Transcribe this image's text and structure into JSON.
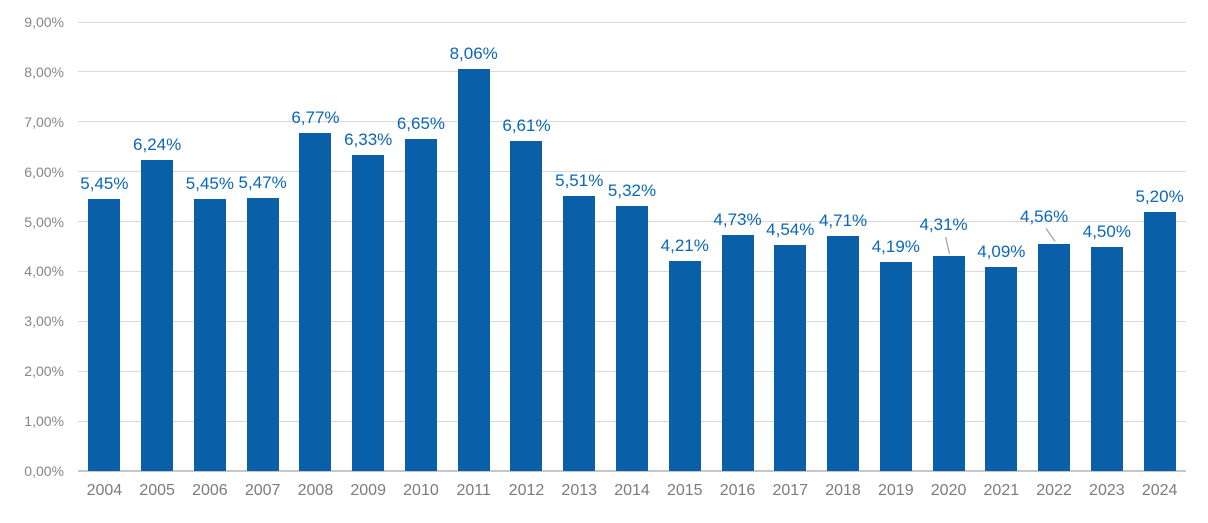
{
  "chart_data": {
    "type": "bar",
    "title": "",
    "xlabel": "",
    "ylabel": "",
    "categories": [
      "2004",
      "2005",
      "2006",
      "2007",
      "2008",
      "2009",
      "2010",
      "2011",
      "2012",
      "2013",
      "2014",
      "2015",
      "2016",
      "2017",
      "2018",
      "2019",
      "2020",
      "2021",
      "2022",
      "2023",
      "2024"
    ],
    "values": [
      5.45,
      6.24,
      5.45,
      5.47,
      6.77,
      6.33,
      6.65,
      8.06,
      6.61,
      5.51,
      5.32,
      4.21,
      4.73,
      4.54,
      4.71,
      4.19,
      4.31,
      4.09,
      4.56,
      4.5,
      5.2
    ],
    "value_labels": [
      "5,45%",
      "6,24%",
      "5,45%",
      "5,47%",
      "6,77%",
      "6,33%",
      "6,65%",
      "8,06%",
      "6,61%",
      "5,51%",
      "5,32%",
      "4,21%",
      "4,73%",
      "4,54%",
      "4,71%",
      "4,19%",
      "4,31%",
      "4,09%",
      "4,56%",
      "4,50%",
      "5,20%"
    ],
    "y_ticks": [
      "0,00%",
      "1,00%",
      "2,00%",
      "3,00%",
      "4,00%",
      "5,00%",
      "6,00%",
      "7,00%",
      "8,00%",
      "9,00%"
    ],
    "ylim": [
      0,
      9
    ],
    "grid": "horizontal",
    "legend": "none",
    "number_format": "percent with comma decimal separator",
    "callouts_with_leader_lines": [
      "2020",
      "2022"
    ],
    "colors": {
      "bar": "#0a60a8",
      "value_label_text": "#0a67b9",
      "axis_text": "#868686",
      "category_text": "#7c7c7c",
      "gridline": "#d9d9d9",
      "axis_line": "#c6c6c6",
      "leader_line": "#a6a6a6",
      "background": "#ffffff"
    }
  }
}
